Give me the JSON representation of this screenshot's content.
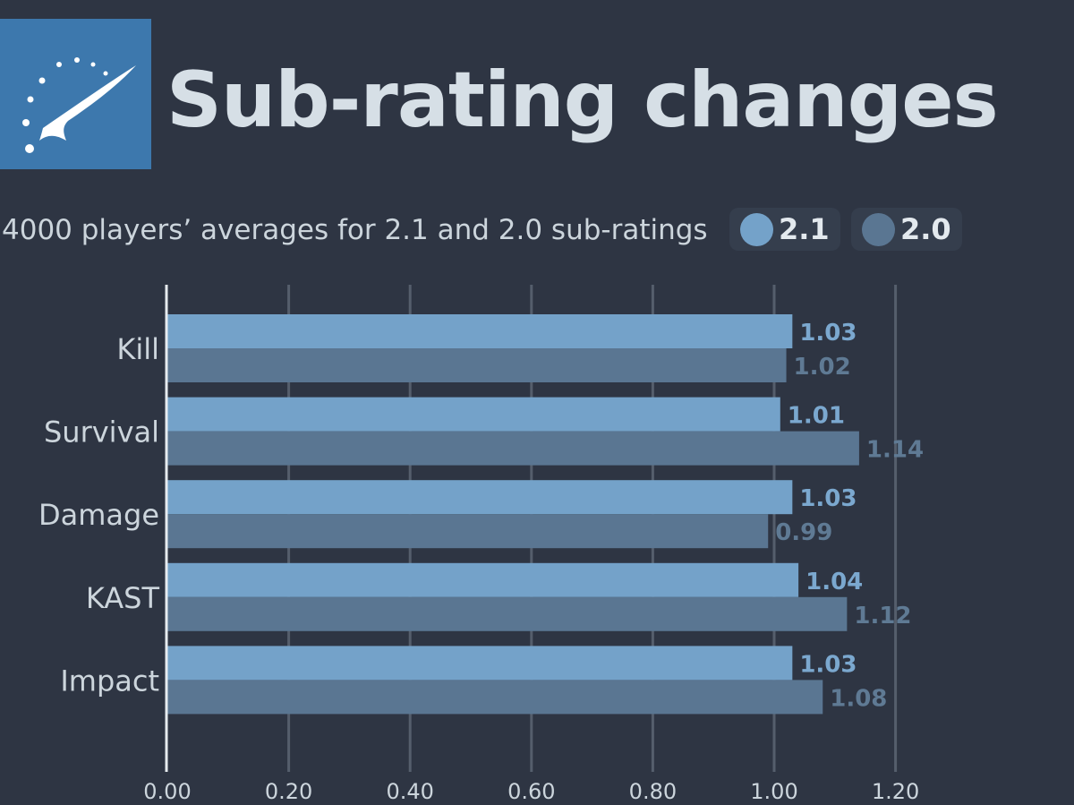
{
  "header": {
    "logo_icon": "gauge-icon",
    "title": "Sub-rating changes",
    "subtitle": "4000 players’ averages for 2.1 and 2.0 sub-ratings"
  },
  "colors": {
    "background": "#2e3543",
    "series_2_1": "#74a2c9",
    "series_2_0": "#5a7692",
    "label_2_1": "#7ba8cf",
    "label_2_0": "#5f7a94",
    "gridline": "#555e6c",
    "axis_text": "#ccd5dc"
  },
  "chart_data": {
    "type": "bar",
    "orientation": "horizontal",
    "title": "Sub-rating changes",
    "subtitle": "4000 players’ averages for 2.1 and 2.0 sub-ratings",
    "categories": [
      "Kill",
      "Survival",
      "Damage",
      "KAST",
      "Impact"
    ],
    "series": [
      {
        "name": "2.1",
        "values": [
          1.03,
          1.01,
          1.03,
          1.04,
          1.03
        ]
      },
      {
        "name": "2.0",
        "values": [
          1.02,
          1.14,
          0.99,
          1.12,
          1.08
        ]
      }
    ],
    "value_labels": {
      "2.1": [
        "1.03",
        "1.01",
        "1.03",
        "1.04",
        "1.03"
      ],
      "2.0": [
        "1.02",
        "1.14",
        "0.99",
        "1.12",
        "1.08"
      ]
    },
    "xlim": [
      0,
      1.2
    ],
    "xticks": [
      0,
      0.2,
      0.4,
      0.6,
      0.8,
      1.0,
      1.2
    ],
    "xtick_labels": [
      "0.00",
      "0.20",
      "0.40",
      "0.60",
      "0.80",
      "1.00",
      "1.20"
    ],
    "grid": "vertical",
    "legend": "top-right"
  }
}
